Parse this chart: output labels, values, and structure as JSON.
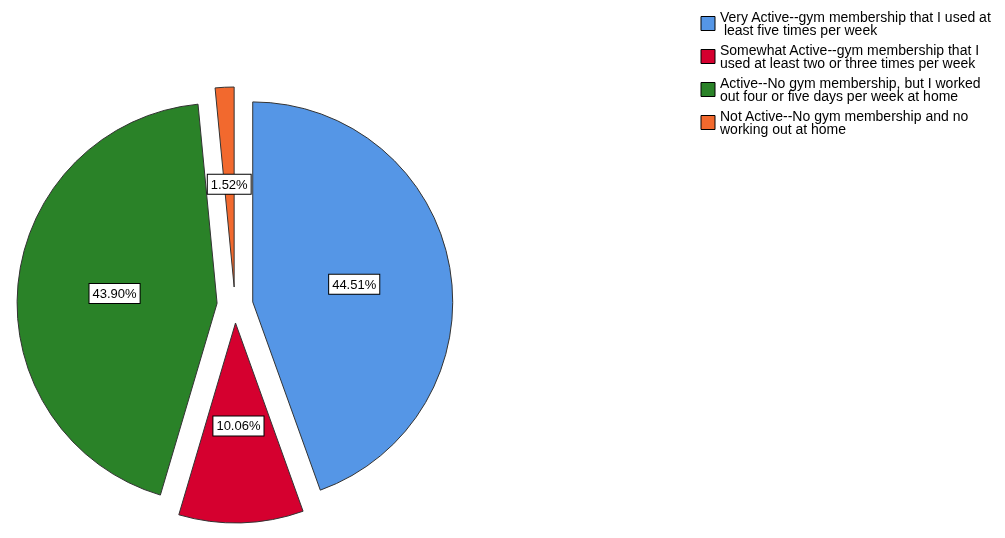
{
  "chart_data": {
    "type": "pie",
    "categories": [
      "Very Active--gym membership that I used at least five times per week",
      "Somewhat Active--gym membership that I used at least two or three times per week",
      "Active--No gym membership, but I worked out four or five days per week at home",
      "Not Active--No gym membership and no working out at home"
    ],
    "values": [
      44.51,
      10.06,
      43.9,
      1.52
    ],
    "colors": [
      "#5596e6",
      "#d5002f",
      "#2a8228",
      "#f2692e"
    ],
    "value_labels": [
      "44.51%",
      "10.06%",
      "43.90%",
      "1.52%"
    ],
    "legend": "top right"
  }
}
